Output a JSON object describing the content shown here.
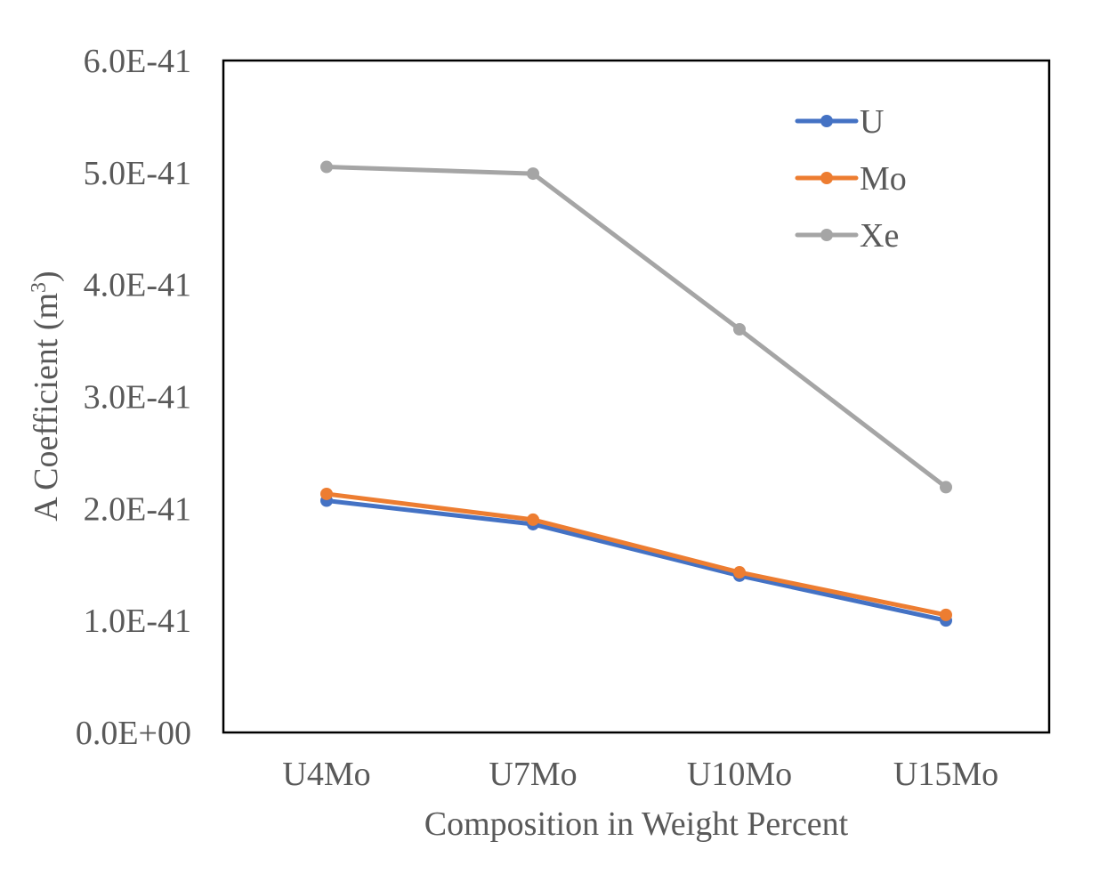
{
  "chart_data": {
    "type": "line",
    "categories": [
      "U4Mo",
      "U7Mo",
      "U10Mo",
      "U15Mo"
    ],
    "series": [
      {
        "name": "U",
        "color": "#4472C4",
        "values": [
          2.07e-41,
          1.86e-41,
          1.4e-41,
          1e-41
        ]
      },
      {
        "name": "Mo",
        "color": "#ED7D31",
        "values": [
          2.13e-41,
          1.9e-41,
          1.43e-41,
          1.05e-41
        ]
      },
      {
        "name": "Xe",
        "color": "#A5A5A5",
        "values": [
          5.05e-41,
          4.99e-41,
          3.6e-41,
          2.19e-41
        ]
      }
    ],
    "ylim": [
      0,
      6e-41
    ],
    "yticks": [
      {
        "value": 0,
        "label": "0.0E+00"
      },
      {
        "value": 1e-41,
        "label": "1.0E-41"
      },
      {
        "value": 2e-41,
        "label": "2.0E-41"
      },
      {
        "value": 3e-41,
        "label": "3.0E-41"
      },
      {
        "value": 4e-41,
        "label": "4.0E-41"
      },
      {
        "value": 5e-41,
        "label": "5.0E-41"
      },
      {
        "value": 6e-41,
        "label": "6.0E-41"
      }
    ],
    "xlabel": "Composition in Weight Percent",
    "ylabel_main": "A Coefficient (m",
    "ylabel_sup": "3",
    "ylabel_end": ")",
    "grid": false,
    "legend_position": "top-right"
  }
}
